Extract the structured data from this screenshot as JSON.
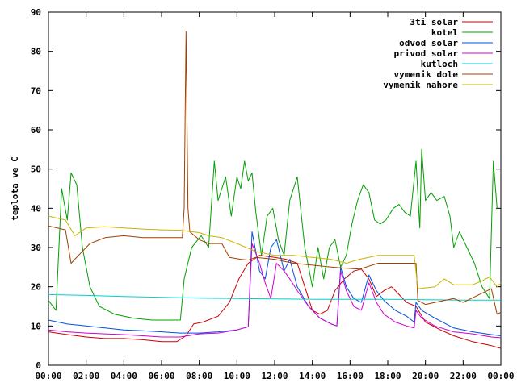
{
  "chart_data": {
    "type": "line",
    "ylabel": "teplota ve C",
    "xlabel": "",
    "ylim": [
      0,
      90
    ],
    "xlim": [
      0,
      24
    ],
    "x_ticks": [
      {
        "value": 0,
        "label": "00:00"
      },
      {
        "value": 2,
        "label": "02:00"
      },
      {
        "value": 4,
        "label": "04:00"
      },
      {
        "value": 6,
        "label": "06:00"
      },
      {
        "value": 8,
        "label": "08:00"
      },
      {
        "value": 10,
        "label": "10:00"
      },
      {
        "value": 12,
        "label": "12:00"
      },
      {
        "value": 14,
        "label": "14:00"
      },
      {
        "value": 16,
        "label": "16:00"
      },
      {
        "value": 18,
        "label": "18:00"
      },
      {
        "value": 20,
        "label": "20:00"
      },
      {
        "value": 22,
        "label": "22:00"
      },
      {
        "value": 24,
        "label": "00:00"
      }
    ],
    "y_ticks": [
      0,
      10,
      20,
      30,
      40,
      50,
      60,
      70,
      80,
      90
    ],
    "grid": false,
    "legend_position": "top-right",
    "series": [
      {
        "name": "3ti solar",
        "color": "#cc0000",
        "points": [
          [
            0,
            8.5
          ],
          [
            1,
            7.8
          ],
          [
            2,
            7.2
          ],
          [
            3,
            6.8
          ],
          [
            4,
            6.8
          ],
          [
            5,
            6.5
          ],
          [
            6,
            6.0
          ],
          [
            6.8,
            6.0
          ],
          [
            7.3,
            7.5
          ],
          [
            7.7,
            10.5
          ],
          [
            8.2,
            11.0
          ],
          [
            9,
            12.5
          ],
          [
            9.6,
            16
          ],
          [
            10.1,
            22
          ],
          [
            10.6,
            26
          ],
          [
            11.2,
            28
          ],
          [
            12,
            27.5
          ],
          [
            12.6,
            27
          ],
          [
            13.2,
            26
          ],
          [
            13.6,
            20
          ],
          [
            14,
            14
          ],
          [
            14.4,
            13
          ],
          [
            14.8,
            14
          ],
          [
            15.2,
            19
          ],
          [
            15.7,
            22
          ],
          [
            16.2,
            24
          ],
          [
            16.6,
            24.5
          ],
          [
            17.0,
            22
          ],
          [
            17.4,
            17.5
          ],
          [
            17.8,
            19
          ],
          [
            18.2,
            20
          ],
          [
            18.6,
            18
          ],
          [
            19,
            16
          ],
          [
            19.5,
            15
          ],
          [
            20,
            11
          ],
          [
            20.8,
            9
          ],
          [
            21.5,
            7.5
          ],
          [
            22.5,
            6.0
          ],
          [
            23.5,
            5.0
          ],
          [
            24,
            4.3
          ]
        ]
      },
      {
        "name": "kotel",
        "color": "#00a000",
        "points": [
          [
            0,
            16.5
          ],
          [
            0.4,
            14
          ],
          [
            0.7,
            45
          ],
          [
            1,
            37
          ],
          [
            1.2,
            49
          ],
          [
            1.5,
            46
          ],
          [
            1.8,
            30
          ],
          [
            2.2,
            20
          ],
          [
            2.7,
            15
          ],
          [
            3.5,
            13
          ],
          [
            4.5,
            12
          ],
          [
            5.5,
            11.5
          ],
          [
            6.5,
            11.5
          ],
          [
            7.0,
            11.5
          ],
          [
            7.2,
            22
          ],
          [
            7.6,
            30
          ],
          [
            8.1,
            33
          ],
          [
            8.5,
            30
          ],
          [
            8.8,
            52
          ],
          [
            9.0,
            42
          ],
          [
            9.4,
            48
          ],
          [
            9.7,
            38
          ],
          [
            10,
            48
          ],
          [
            10.2,
            45
          ],
          [
            10.4,
            52
          ],
          [
            10.6,
            47
          ],
          [
            10.8,
            49
          ],
          [
            11.0,
            39
          ],
          [
            11.3,
            28
          ],
          [
            11.6,
            38
          ],
          [
            11.9,
            40
          ],
          [
            12.2,
            32
          ],
          [
            12.5,
            28
          ],
          [
            12.8,
            42
          ],
          [
            13.2,
            48
          ],
          [
            13.6,
            30
          ],
          [
            14,
            20
          ],
          [
            14.3,
            30
          ],
          [
            14.6,
            22
          ],
          [
            14.9,
            30
          ],
          [
            15.2,
            32
          ],
          [
            15.5,
            25
          ],
          [
            15.8,
            28
          ],
          [
            16.1,
            36
          ],
          [
            16.4,
            42
          ],
          [
            16.7,
            46
          ],
          [
            17,
            44
          ],
          [
            17.3,
            37
          ],
          [
            17.6,
            36
          ],
          [
            17.9,
            37
          ],
          [
            18.3,
            40
          ],
          [
            18.6,
            41
          ],
          [
            18.9,
            39
          ],
          [
            19.2,
            38
          ],
          [
            19.5,
            52
          ],
          [
            19.7,
            35
          ],
          [
            19.8,
            55
          ],
          [
            20.0,
            42
          ],
          [
            20.3,
            44
          ],
          [
            20.6,
            42
          ],
          [
            21,
            43
          ],
          [
            21.3,
            38
          ],
          [
            21.5,
            30
          ],
          [
            21.8,
            34
          ],
          [
            22.2,
            30
          ],
          [
            22.6,
            26
          ],
          [
            23,
            20
          ],
          [
            23.4,
            17
          ],
          [
            23.6,
            52
          ],
          [
            23.8,
            40
          ]
        ]
      },
      {
        "name": "odvod solar",
        "color": "#0050e0",
        "points": [
          [
            0,
            11.5
          ],
          [
            1,
            10.5
          ],
          [
            2,
            10
          ],
          [
            3,
            9.5
          ],
          [
            4,
            9
          ],
          [
            5,
            8.8
          ],
          [
            6,
            8.5
          ],
          [
            7,
            8.2
          ],
          [
            8,
            8.2
          ],
          [
            9,
            8.5
          ],
          [
            10,
            9
          ],
          [
            10.6,
            9.8
          ],
          [
            10.8,
            34
          ],
          [
            11.2,
            24
          ],
          [
            11.5,
            22
          ],
          [
            11.8,
            30
          ],
          [
            12.1,
            32
          ],
          [
            12.5,
            24
          ],
          [
            12.8,
            27
          ],
          [
            13.2,
            20
          ],
          [
            13.8,
            15
          ],
          [
            14.4,
            12
          ],
          [
            15,
            10.5
          ],
          [
            15.3,
            10
          ],
          [
            15.5,
            25
          ],
          [
            15.8,
            20
          ],
          [
            16.2,
            17
          ],
          [
            16.6,
            16
          ],
          [
            17,
            23
          ],
          [
            17.4,
            19
          ],
          [
            17.8,
            16.5
          ],
          [
            18.4,
            14
          ],
          [
            19,
            12.5
          ],
          [
            19.4,
            11
          ],
          [
            19.5,
            16
          ],
          [
            19.8,
            14
          ],
          [
            20.5,
            12
          ],
          [
            21.5,
            9.5
          ],
          [
            22.5,
            8.5
          ],
          [
            23.5,
            7.8
          ],
          [
            24,
            7.5
          ]
        ]
      },
      {
        "name": "privod solar",
        "color": "#d000d0",
        "points": [
          [
            0,
            9
          ],
          [
            1,
            8.5
          ],
          [
            2,
            8.2
          ],
          [
            3,
            8
          ],
          [
            4,
            7.8
          ],
          [
            5,
            7.5
          ],
          [
            6,
            7.2
          ],
          [
            7,
            7.2
          ],
          [
            8,
            8
          ],
          [
            9,
            8.2
          ],
          [
            10,
            9
          ],
          [
            10.6,
            9.8
          ],
          [
            10.8,
            31
          ],
          [
            11.2,
            26
          ],
          [
            11.5,
            21
          ],
          [
            11.8,
            17
          ],
          [
            12.1,
            26
          ],
          [
            12.5,
            24
          ],
          [
            12.8,
            22
          ],
          [
            13.2,
            19
          ],
          [
            13.8,
            15
          ],
          [
            14.4,
            12
          ],
          [
            15,
            10.5
          ],
          [
            15.3,
            10
          ],
          [
            15.5,
            24
          ],
          [
            15.8,
            19
          ],
          [
            16.2,
            15
          ],
          [
            16.6,
            14
          ],
          [
            17,
            21
          ],
          [
            17.4,
            16
          ],
          [
            17.8,
            13
          ],
          [
            18.4,
            11
          ],
          [
            19,
            10
          ],
          [
            19.4,
            9.5
          ],
          [
            19.5,
            14
          ],
          [
            19.8,
            12
          ],
          [
            20.5,
            10
          ],
          [
            21.5,
            8.5
          ],
          [
            22.5,
            8
          ],
          [
            23.5,
            7.2
          ],
          [
            24,
            7
          ]
        ]
      },
      {
        "name": "kutloch",
        "color": "#00d0d0",
        "points": [
          [
            0,
            18
          ],
          [
            2,
            17.8
          ],
          [
            4,
            17.5
          ],
          [
            6,
            17.3
          ],
          [
            8,
            17.1
          ],
          [
            10,
            17
          ],
          [
            12,
            16.9
          ],
          [
            14,
            16.8
          ],
          [
            16,
            16.8
          ],
          [
            18,
            16.8
          ],
          [
            20,
            16.7
          ],
          [
            22,
            16.6
          ],
          [
            24,
            16.6
          ]
        ]
      },
      {
        "name": "vymenik dole",
        "color": "#a04000",
        "points": [
          [
            0,
            35.5
          ],
          [
            0.9,
            34.5
          ],
          [
            1.2,
            26
          ],
          [
            1.6,
            28
          ],
          [
            2.2,
            31
          ],
          [
            3,
            32.5
          ],
          [
            4,
            33
          ],
          [
            5,
            32.5
          ],
          [
            6,
            32.5
          ],
          [
            7.1,
            32.5
          ],
          [
            7.2,
            40
          ],
          [
            7.3,
            85
          ],
          [
            7.4,
            40
          ],
          [
            7.5,
            34
          ],
          [
            8,
            32
          ],
          [
            8.5,
            31
          ],
          [
            9.2,
            31
          ],
          [
            9.6,
            27.5
          ],
          [
            10.2,
            27
          ],
          [
            10.6,
            26.8
          ],
          [
            11,
            27.5
          ],
          [
            12,
            27
          ],
          [
            13,
            26
          ],
          [
            14,
            25.5
          ],
          [
            15,
            25
          ],
          [
            15.5,
            24.8
          ],
          [
            16.5,
            24.5
          ],
          [
            17.5,
            26
          ],
          [
            18.5,
            26
          ],
          [
            19.5,
            26
          ],
          [
            19.6,
            16.5
          ],
          [
            20,
            15.5
          ],
          [
            20.5,
            16
          ],
          [
            21.5,
            17
          ],
          [
            22,
            16
          ],
          [
            23.5,
            19.5
          ],
          [
            23.8,
            13
          ],
          [
            24,
            13.5
          ]
        ]
      },
      {
        "name": "vymenik nahore",
        "color": "#c8b400",
        "points": [
          [
            0,
            38
          ],
          [
            0.9,
            37
          ],
          [
            1.4,
            33
          ],
          [
            2,
            35
          ],
          [
            3,
            35.3
          ],
          [
            4,
            35
          ],
          [
            5,
            34.7
          ],
          [
            6,
            34.5
          ],
          [
            7,
            34.4
          ],
          [
            8,
            33.8
          ],
          [
            8.5,
            33
          ],
          [
            9.2,
            32.5
          ],
          [
            10,
            31
          ],
          [
            10.5,
            30
          ],
          [
            11,
            29
          ],
          [
            12,
            28
          ],
          [
            13,
            28
          ],
          [
            14,
            27.5
          ],
          [
            15,
            27
          ],
          [
            15.8,
            26
          ],
          [
            16.5,
            27
          ],
          [
            17.5,
            28
          ],
          [
            18.5,
            28
          ],
          [
            19.4,
            28
          ],
          [
            19.6,
            19.5
          ],
          [
            20.5,
            20
          ],
          [
            21,
            22
          ],
          [
            21.5,
            20.5
          ],
          [
            22.5,
            20.5
          ],
          [
            23,
            21.5
          ],
          [
            23.4,
            22.5
          ],
          [
            23.8,
            20
          ],
          [
            24,
            21
          ]
        ]
      }
    ]
  }
}
